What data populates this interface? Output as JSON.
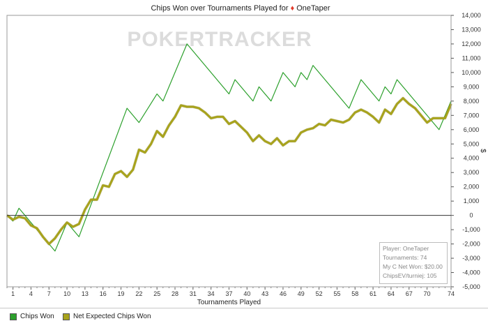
{
  "chart_data": {
    "type": "line",
    "title_prefix": "Chips Won over Tournaments Played for",
    "title_player": "OneTaper",
    "watermark": "POKERTRACKER",
    "xlabel": "Tournaments Played",
    "ylabel": "$",
    "xlim": [
      0,
      74
    ],
    "ylim": [
      -5000,
      14000
    ],
    "x_ticks": [
      1,
      4,
      7,
      10,
      13,
      16,
      19,
      22,
      25,
      28,
      31,
      34,
      37,
      40,
      43,
      46,
      49,
      52,
      55,
      58,
      61,
      64,
      67,
      70,
      74
    ],
    "y_ticks": [
      -5000,
      -4000,
      -3000,
      -2000,
      -1000,
      0,
      1000,
      2000,
      3000,
      4000,
      5000,
      6000,
      7000,
      8000,
      9000,
      10000,
      11000,
      12000,
      13000,
      14000
    ],
    "y_tick_labels": [
      "-5,000",
      "-4,000",
      "-3,000",
      "-2,000",
      "-1,000",
      "0",
      "1,000",
      "2,000",
      "3,000",
      "4,000",
      "5,000",
      "6,000",
      "7,000",
      "8,000",
      "9,000",
      "10,000",
      "11,000",
      "12,000",
      "13,000",
      "14,000"
    ],
    "series": [
      {
        "name": "Chips Won",
        "color": "#2ca02c",
        "points": [
          [
            0,
            0
          ],
          [
            1,
            -400
          ],
          [
            2,
            500
          ],
          [
            3,
            0
          ],
          [
            5,
            -1000
          ],
          [
            8,
            -2500
          ],
          [
            10,
            -500
          ],
          [
            12,
            -1500
          ],
          [
            20,
            7500
          ],
          [
            22,
            6500
          ],
          [
            25,
            8500
          ],
          [
            26,
            8000
          ],
          [
            30,
            12000
          ],
          [
            37,
            8500
          ],
          [
            38,
            9500
          ],
          [
            41,
            8000
          ],
          [
            42,
            9000
          ],
          [
            44,
            8000
          ],
          [
            46,
            10000
          ],
          [
            48,
            9000
          ],
          [
            49,
            10000
          ],
          [
            50,
            9500
          ],
          [
            51,
            10500
          ],
          [
            57,
            7500
          ],
          [
            59,
            9500
          ],
          [
            62,
            8000
          ],
          [
            63,
            9000
          ],
          [
            64,
            8500
          ],
          [
            65,
            9500
          ],
          [
            72,
            6000
          ],
          [
            74,
            8000
          ]
        ]
      },
      {
        "name": "Net Expected Chips Won",
        "color": "#a8a31c",
        "points": [
          [
            0,
            0
          ],
          [
            1,
            -300
          ],
          [
            2,
            -100
          ],
          [
            3,
            -200
          ],
          [
            4,
            -700
          ],
          [
            5,
            -900
          ],
          [
            6,
            -1500
          ],
          [
            7,
            -2000
          ],
          [
            8,
            -1600
          ],
          [
            9,
            -1000
          ],
          [
            10,
            -500
          ],
          [
            11,
            -800
          ],
          [
            12,
            -600
          ],
          [
            13,
            400
          ],
          [
            14,
            1100
          ],
          [
            15,
            1100
          ],
          [
            16,
            2100
          ],
          [
            17,
            2000
          ],
          [
            18,
            2900
          ],
          [
            19,
            3100
          ],
          [
            20,
            2700
          ],
          [
            21,
            3200
          ],
          [
            22,
            4600
          ],
          [
            23,
            4400
          ],
          [
            24,
            5000
          ],
          [
            25,
            5900
          ],
          [
            26,
            5500
          ],
          [
            27,
            6300
          ],
          [
            28,
            6900
          ],
          [
            29,
            7700
          ],
          [
            30,
            7600
          ],
          [
            31,
            7600
          ],
          [
            32,
            7500
          ],
          [
            33,
            7200
          ],
          [
            34,
            6800
          ],
          [
            35,
            6900
          ],
          [
            36,
            6900
          ],
          [
            37,
            6400
          ],
          [
            38,
            6600
          ],
          [
            39,
            6200
          ],
          [
            40,
            5800
          ],
          [
            41,
            5200
          ],
          [
            42,
            5600
          ],
          [
            43,
            5200
          ],
          [
            44,
            5000
          ],
          [
            45,
            5400
          ],
          [
            46,
            4900
          ],
          [
            47,
            5200
          ],
          [
            48,
            5200
          ],
          [
            49,
            5800
          ],
          [
            50,
            6000
          ],
          [
            51,
            6100
          ],
          [
            52,
            6400
          ],
          [
            53,
            6300
          ],
          [
            54,
            6700
          ],
          [
            55,
            6600
          ],
          [
            56,
            6500
          ],
          [
            57,
            6700
          ],
          [
            58,
            7200
          ],
          [
            59,
            7400
          ],
          [
            60,
            7200
          ],
          [
            61,
            6900
          ],
          [
            62,
            6500
          ],
          [
            63,
            7400
          ],
          [
            64,
            7100
          ],
          [
            65,
            7800
          ],
          [
            66,
            8200
          ],
          [
            67,
            7800
          ],
          [
            68,
            7500
          ],
          [
            69,
            7000
          ],
          [
            70,
            6500
          ],
          [
            71,
            6800
          ],
          [
            72,
            6800
          ],
          [
            73,
            6800
          ],
          [
            74,
            7800
          ]
        ]
      }
    ]
  },
  "info_box": {
    "player": "Player: OneTaper",
    "tournaments": "Tournaments: 74",
    "net_won": "My C Net Won: $20.00",
    "chips_ev": "ChipsEV/turniej: 105"
  },
  "legend": {
    "items": [
      {
        "label": "Chips Won",
        "color": "#2ca02c"
      },
      {
        "label": "Net Expected Chips Won",
        "color": "#a8a31c"
      }
    ]
  }
}
